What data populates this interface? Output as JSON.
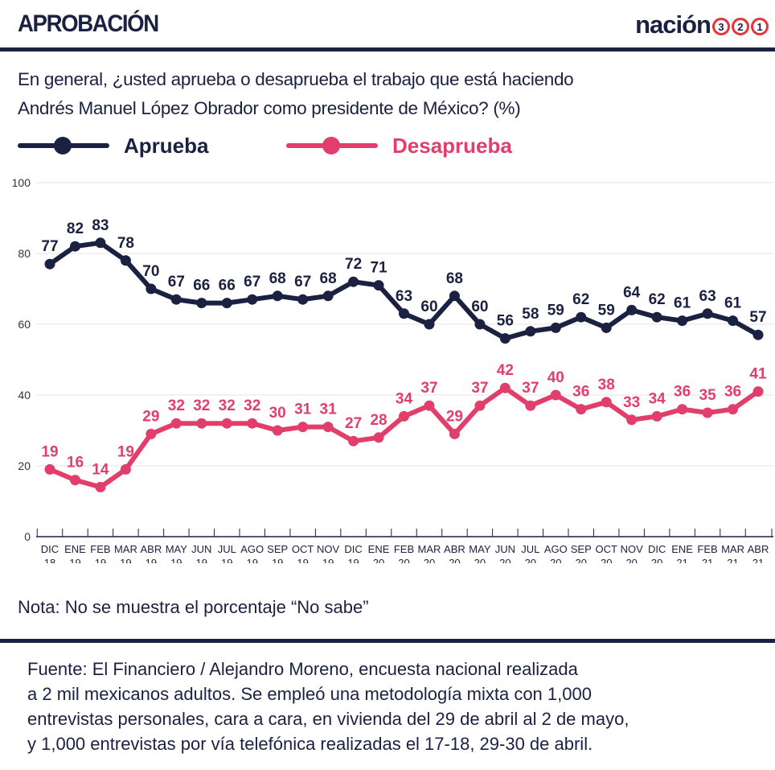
{
  "header": {
    "title": "APROBACIÓN",
    "logo_word": "nación",
    "logo_badges": [
      "3",
      "2",
      "1"
    ]
  },
  "question": {
    "line1": "En general, ¿usted aprueba o desaprueba el trabajo que está haciendo",
    "line2": "Andrés Manuel López Obrador como presidente de México?  (%)"
  },
  "colors": {
    "navy": "#1b2140",
    "pink": "#e23e6b",
    "grid": "#eeeeee",
    "logo_ring": "#e8323c"
  },
  "note": "Nota: No se muestra el porcentaje “No sabe”",
  "source": {
    "line1": "Fuente: El Financiero / Alejandro Moreno, encuesta nacional realizada",
    "line2": "a 2 mil mexicanos adultos. Se empleó una metodología mixta con 1,000",
    "line3": "entrevistas personales, cara a cara, en vivienda del 29 de abril al 2 de mayo,",
    "line4": "y 1,000 entrevistas por vía telefónica realizadas el 17-18, 29-30 de abril."
  },
  "chart_data": {
    "type": "line",
    "title": "APROBACIÓN",
    "subtitle": "En general, ¿usted aprueba o desaprueba el trabajo que está haciendo Andrés Manuel López Obrador como presidente de México?  (%)",
    "xlabel": "",
    "ylabel": "",
    "ylim": [
      0,
      100
    ],
    "yticks": [
      0,
      20,
      40,
      60,
      80,
      100
    ],
    "grid": true,
    "legend_position": "top-left",
    "categories": [
      [
        "DIC",
        "18"
      ],
      [
        "ENE",
        "19"
      ],
      [
        "FEB",
        "19"
      ],
      [
        "MAR",
        "19"
      ],
      [
        "ABR",
        "19"
      ],
      [
        "MAY",
        "19"
      ],
      [
        "JUN",
        "19"
      ],
      [
        "JUL",
        "19"
      ],
      [
        "AGO",
        "19"
      ],
      [
        "SEP",
        "19"
      ],
      [
        "OCT",
        "19"
      ],
      [
        "NOV",
        "19"
      ],
      [
        "DIC",
        "19"
      ],
      [
        "ENE",
        "20"
      ],
      [
        "FEB",
        "20"
      ],
      [
        "MAR",
        "20"
      ],
      [
        "ABR",
        "20"
      ],
      [
        "MAY",
        "20"
      ],
      [
        "JUN",
        "20"
      ],
      [
        "JUL",
        "20"
      ],
      [
        "AGO",
        "20"
      ],
      [
        "SEP",
        "20"
      ],
      [
        "OCT",
        "20"
      ],
      [
        "NOV",
        "20"
      ],
      [
        "DIC",
        "20"
      ],
      [
        "ENE",
        "21"
      ],
      [
        "FEB",
        "21"
      ],
      [
        "MAR",
        "21"
      ],
      [
        "ABR",
        "21"
      ]
    ],
    "series": [
      {
        "name": "Aprueba",
        "color": "#1b2140",
        "values": [
          77,
          82,
          83,
          78,
          70,
          67,
          66,
          66,
          67,
          68,
          67,
          68,
          72,
          71,
          63,
          60,
          68,
          60,
          56,
          58,
          59,
          62,
          59,
          64,
          62,
          61,
          63,
          61,
          57
        ]
      },
      {
        "name": "Desaprueba",
        "color": "#e23e6b",
        "values": [
          19,
          16,
          14,
          19,
          29,
          32,
          32,
          32,
          32,
          30,
          31,
          31,
          27,
          28,
          34,
          37,
          29,
          37,
          42,
          37,
          40,
          36,
          38,
          33,
          34,
          36,
          35,
          36,
          41
        ]
      }
    ]
  }
}
